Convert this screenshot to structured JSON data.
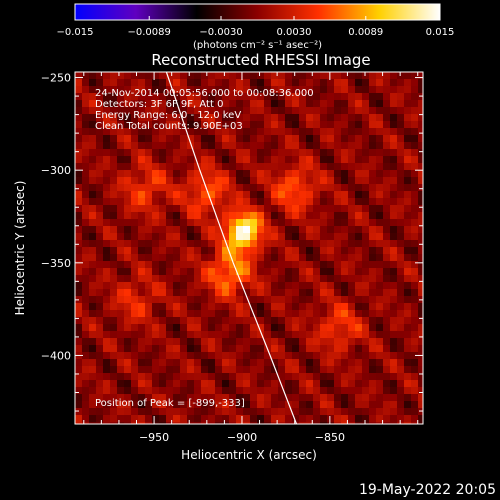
{
  "chart_data": {
    "type": "heatmap",
    "title": "Reconstructed RHESSI Image",
    "xlabel": "Heliocentric X (arcsec)",
    "ylabel": "Heliocentric Y (arcsec)",
    "xlim": [
      -995,
      -797
    ],
    "ylim": [
      -437,
      -247
    ],
    "x_ticks": [
      -950,
      -900,
      -850
    ],
    "x_tick_labels": [
      "−950",
      "−900",
      "−850"
    ],
    "y_ticks": [
      -250,
      -300,
      -350,
      -400
    ],
    "y_tick_labels": [
      "−250",
      "−300",
      "−350",
      "−400"
    ],
    "colorbar": {
      "min": -0.015,
      "max": 0.015,
      "ticks": [
        -0.015,
        -0.0089,
        -0.003,
        0.003,
        0.0089,
        0.015
      ],
      "tick_labels": [
        "−0.015",
        "−0.0089",
        "−0.0030",
        "0.0030",
        "0.0089",
        "0.015"
      ],
      "unit": "(photons cm⁻² s⁻¹ asec⁻²)",
      "colormap": [
        "#0000ff",
        "#6000c0",
        "#000000",
        "#8c0000",
        "#ff3000",
        "#ffd000",
        "#ffffff"
      ]
    },
    "annotations": [
      "24-Nov-2014 00:05:56.000 to 00:08:36.000",
      "Detectors: 3F 6F 9F, Att 0",
      "Energy Range: 6.0 - 12.0 keV",
      "Clean    Total counts: 9.90E+03"
    ],
    "peak_label": "Position of Peak = [-899,-333]",
    "peak": {
      "x": -899,
      "y": -333,
      "value": 0.015
    },
    "limb_curve": [
      {
        "x": -943,
        "y": -247
      },
      {
        "x": -924,
        "y": -300
      },
      {
        "x": -905,
        "y": -350
      },
      {
        "x": -884,
        "y": -400
      },
      {
        "x": -869,
        "y": -437
      }
    ],
    "secondary_sources": [
      {
        "x": -907,
        "y": -355,
        "value": 0.008
      },
      {
        "x": -920,
        "y": -312,
        "value": 0.006
      },
      {
        "x": -870,
        "y": -310,
        "value": 0.006
      },
      {
        "x": -955,
        "y": -310,
        "value": 0.005
      },
      {
        "x": -845,
        "y": -385,
        "value": 0.005
      },
      {
        "x": -960,
        "y": -370,
        "value": 0.004
      }
    ]
  },
  "footer": {
    "timestamp": "19-May-2022 20:05"
  }
}
